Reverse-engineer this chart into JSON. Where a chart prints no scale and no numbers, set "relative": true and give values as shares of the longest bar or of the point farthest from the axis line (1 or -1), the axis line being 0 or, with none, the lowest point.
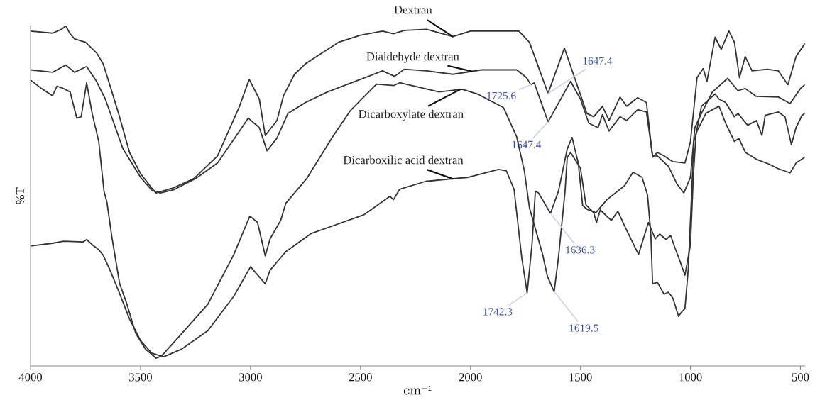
{
  "chart_data": {
    "type": "line",
    "relative": true,
    "xlabel": "cm⁻¹",
    "ylabel": "%T",
    "xlim": [
      4000,
      480
    ],
    "xticks": [
      4000,
      3500,
      3000,
      2500,
      2000,
      1500,
      1000,
      500
    ],
    "grid": false,
    "legend": false,
    "marker": "none",
    "line_style": "solid",
    "series": [
      {
        "name": "Dextran",
        "color": "#333333",
        "x": [
          4000,
          3900,
          3860,
          3840,
          3820,
          3800,
          3750,
          3700,
          3670,
          3640,
          3600,
          3550,
          3500,
          3450,
          3430,
          3350,
          3258,
          3150,
          3050,
          3006,
          2960,
          2933,
          2880,
          2850,
          2800,
          2750,
          2700,
          2600,
          2500,
          2400,
          2350,
          2300,
          2200,
          2080,
          2000,
          1780,
          1732,
          1647.4,
          1573,
          1471,
          1440,
          1400,
          1370,
          1320,
          1290,
          1240,
          1200,
          1172,
          1150,
          1120,
          1080,
          1025,
          1000,
          970,
          942,
          925,
          888,
          860,
          825,
          800,
          777,
          751,
          720,
          650,
          600,
          557,
          520,
          480
        ],
        "values": [
          0.985,
          0.979,
          0.99,
          1.0,
          0.977,
          0.962,
          0.952,
          0.921,
          0.889,
          0.827,
          0.743,
          0.628,
          0.566,
          0.524,
          0.509,
          0.524,
          0.551,
          0.618,
          0.764,
          0.843,
          0.785,
          0.678,
          0.722,
          0.795,
          0.858,
          0.889,
          0.91,
          0.952,
          0.973,
          0.985,
          0.977,
          0.987,
          0.99,
          0.969,
          0.985,
          0.985,
          0.952,
          0.802,
          0.935,
          0.743,
          0.733,
          0.764,
          0.722,
          0.791,
          0.764,
          0.789,
          0.775,
          0.614,
          0.628,
          0.618,
          0.601,
          0.597,
          0.66,
          0.848,
          0.875,
          0.837,
          0.967,
          0.931,
          0.985,
          0.952,
          0.848,
          0.91,
          0.868,
          0.873,
          0.868,
          0.827,
          0.91,
          0.948
        ]
      },
      {
        "name": "Dialdehyde dextran",
        "color": "#333333",
        "x": [
          4000,
          3900,
          3840,
          3800,
          3745,
          3700,
          3660,
          3620,
          3580,
          3500,
          3450,
          3410,
          3350,
          3250,
          3150,
          3050,
          3010,
          2960,
          2925,
          2880,
          2830,
          2750,
          2650,
          2500,
          2400,
          2345,
          2300,
          2200,
          2080,
          1950,
          1790,
          1745,
          1725.6,
          1710,
          1647.4,
          1545,
          1500,
          1462,
          1420,
          1400,
          1370,
          1320,
          1290,
          1240,
          1200,
          1172,
          1150,
          1100,
          1060,
          1030,
          1000,
          980,
          950,
          900,
          831,
          784,
          751,
          700,
          600,
          547,
          500,
          480
        ],
        "values": [
          0.871,
          0.864,
          0.885,
          0.864,
          0.881,
          0.837,
          0.785,
          0.712,
          0.639,
          0.555,
          0.518,
          0.509,
          0.518,
          0.551,
          0.597,
          0.691,
          0.729,
          0.701,
          0.633,
          0.67,
          0.743,
          0.775,
          0.806,
          0.843,
          0.868,
          0.852,
          0.873,
          0.868,
          0.858,
          0.871,
          0.871,
          0.848,
          0.827,
          0.833,
          0.718,
          0.837,
          0.785,
          0.714,
          0.701,
          0.739,
          0.691,
          0.733,
          0.722,
          0.754,
          0.747,
          0.618,
          0.618,
          0.587,
          0.534,
          0.509,
          0.555,
          0.701,
          0.743,
          0.806,
          0.846,
          0.81,
          0.816,
          0.793,
          0.791,
          0.772,
          0.816,
          0.827
        ]
      },
      {
        "name": "Dicarboxylate dextran",
        "color": "#333333",
        "x": [
          4000,
          3950,
          3900,
          3880,
          3850,
          3820,
          3790,
          3770,
          3745,
          3720,
          3690,
          3666,
          3653,
          3630,
          3595,
          3564,
          3522,
          3478,
          3430,
          3405,
          3312,
          3194,
          3076,
          3003,
          2968,
          2933,
          2911,
          2863,
          2840,
          2745,
          2627,
          2545,
          2427,
          2348,
          2322,
          2143,
          2038,
          1968,
          1850,
          1790,
          1755,
          1732,
          1672,
          1650,
          1619.5,
          1600,
          1570,
          1560,
          1545,
          1500,
          1475,
          1440,
          1427,
          1410,
          1360,
          1330,
          1300,
          1236,
          1191,
          1160,
          1140,
          1110,
          1090,
          1070,
          1050,
          1025,
          1000,
          987,
          975,
          950,
          888,
          870,
          840,
          800,
          784,
          740,
          700,
          675,
          660,
          600,
          570,
          541,
          520,
          493,
          480
        ],
        "values": [
          0.841,
          0.816,
          0.795,
          0.823,
          0.816,
          0.806,
          0.729,
          0.733,
          0.833,
          0.743,
          0.66,
          0.514,
          0.482,
          0.378,
          0.242,
          0.186,
          0.096,
          0.05,
          0.023,
          0.029,
          0.096,
          0.182,
          0.328,
          0.441,
          0.422,
          0.324,
          0.374,
          0.428,
          0.478,
          0.551,
          0.674,
          0.752,
          0.829,
          0.825,
          0.833,
          0.806,
          0.814,
          0.8,
          0.76,
          0.674,
          0.574,
          0.466,
          0.328,
          0.263,
          0.219,
          0.319,
          0.514,
          0.614,
          0.628,
          0.582,
          0.474,
          0.451,
          0.422,
          0.459,
          0.428,
          0.455,
          0.413,
          0.328,
          0.422,
          0.374,
          0.388,
          0.372,
          0.384,
          0.347,
          0.313,
          0.267,
          0.357,
          0.555,
          0.681,
          0.764,
          0.8,
          0.785,
          0.775,
          0.733,
          0.743,
          0.708,
          0.722,
          0.678,
          0.737,
          0.747,
          0.733,
          0.651,
          0.701,
          0.737,
          0.743
        ]
      },
      {
        "name": "Dicarboxilic acid dextran",
        "color": "#333333",
        "x": [
          4000,
          3900,
          3850,
          3760,
          3745,
          3720,
          3690,
          3670,
          3640,
          3600,
          3550,
          3500,
          3450,
          3395,
          3312,
          3194,
          3076,
          3000,
          2933,
          2911,
          2840,
          2723,
          2640,
          2484,
          2366,
          2350,
          2322,
          2204,
          2009,
          1872,
          1837,
          1802,
          1767,
          1742.3,
          1720,
          1705,
          1691,
          1636.3,
          1600,
          1560,
          1538,
          1510,
          1490,
          1470,
          1430,
          1380,
          1300,
          1261,
          1220,
          1195,
          1180,
          1172,
          1150,
          1120,
          1100,
          1080,
          1054,
          1040,
          1025,
          1010,
          994,
          985,
          970,
          930,
          900,
          870,
          840,
          800,
          780,
          750,
          700,
          640,
          600,
          547,
          520,
          480
        ],
        "values": [
          0.353,
          0.361,
          0.367,
          0.365,
          0.372,
          0.357,
          0.342,
          0.326,
          0.284,
          0.221,
          0.138,
          0.075,
          0.038,
          0.027,
          0.05,
          0.104,
          0.205,
          0.292,
          0.242,
          0.282,
          0.336,
          0.39,
          0.409,
          0.445,
          0.499,
          0.489,
          0.52,
          0.543,
          0.555,
          0.578,
          0.574,
          0.52,
          0.319,
          0.215,
          0.359,
          0.514,
          0.509,
          0.449,
          0.514,
          0.639,
          0.672,
          0.597,
          0.472,
          0.461,
          0.451,
          0.489,
          0.53,
          0.57,
          0.555,
          0.503,
          0.388,
          0.242,
          0.246,
          0.211,
          0.217,
          0.2,
          0.146,
          0.159,
          0.169,
          0.284,
          0.514,
          0.66,
          0.691,
          0.743,
          0.754,
          0.764,
          0.714,
          0.66,
          0.67,
          0.628,
          0.608,
          0.593,
          0.58,
          0.568,
          0.597,
          0.614
        ]
      }
    ],
    "annotations": [
      {
        "text": "1647.4",
        "x": 1647.4,
        "y": 0.802
      },
      {
        "text": "1725.6",
        "x": 1725.6,
        "y": 0.827
      },
      {
        "text": "1647.4",
        "x": 1647.4,
        "y": 0.718
      },
      {
        "text": "1636.3",
        "x": 1636.3,
        "y": 0.449
      },
      {
        "text": "1742.3",
        "x": 1742.3,
        "y": 0.215
      },
      {
        "text": "1619.5",
        "x": 1619.5,
        "y": 0.219
      }
    ]
  }
}
